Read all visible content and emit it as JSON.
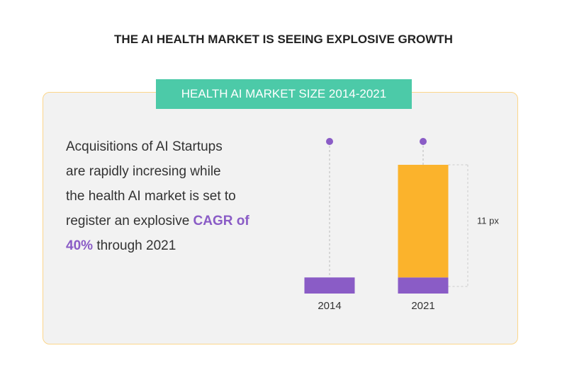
{
  "title": "THE AI HEALTH MARKET IS SEEING EXPLOSIVE GROWTH",
  "chart_data": {
    "type": "bar",
    "title": "HEALTH AI MARKET SIZE 2014-2021",
    "categories": [
      "2014",
      "2021"
    ],
    "series": [
      {
        "color": "#8a5cc6",
        "values": [
          1,
          1
        ]
      },
      {
        "color": "#fbb32c",
        "values": [
          null,
          7
        ]
      }
    ],
    "annotation": "11 px",
    "text": [
      "Acquisitions of AI Startups",
      "are rapidly incresing while",
      "the health AI market is set to",
      "register an explosive",
      "CAGR of",
      "40%",
      "through 2021"
    ]
  }
}
